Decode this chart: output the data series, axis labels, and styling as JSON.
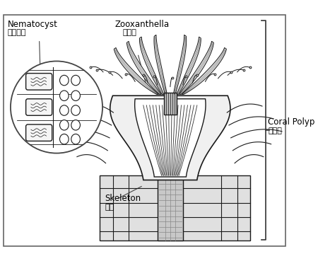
{
  "labels": {
    "nematocyst_en": "Nematocyst",
    "nematocyst_zh": "刺絲細胞",
    "zooxanthella_en": "Zooxanthella",
    "zooxanthella_zh": "共生藻",
    "coral_polyp_en": "Coral Polyp",
    "coral_polyp_zh": "珊瑚蟲",
    "skeleton_en": "Skeleton",
    "skeleton_zh": "骨骼"
  },
  "fig_width": 4.5,
  "fig_height": 3.69,
  "dpi": 100
}
